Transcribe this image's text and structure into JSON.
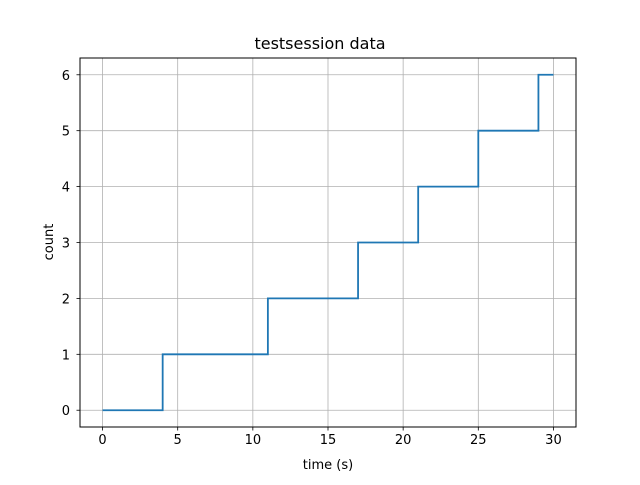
{
  "chart_data": {
    "type": "line",
    "drawstyle": "steps-post",
    "title": "testsession data",
    "xlabel": "time (s)",
    "ylabel": "count",
    "xlim": [
      -1.5,
      31.5
    ],
    "ylim": [
      -0.3,
      6.3
    ],
    "xticks": [
      0,
      5,
      10,
      15,
      20,
      25,
      30
    ],
    "yticks": [
      0,
      1,
      2,
      3,
      4,
      5,
      6
    ],
    "grid": true,
    "legend": "none",
    "series": [
      {
        "color": "#1f77b4",
        "x": [
          0,
          4,
          11,
          17,
          21,
          25,
          29,
          30
        ],
        "y": [
          0,
          1,
          2,
          3,
          4,
          5,
          6,
          6
        ]
      }
    ]
  }
}
